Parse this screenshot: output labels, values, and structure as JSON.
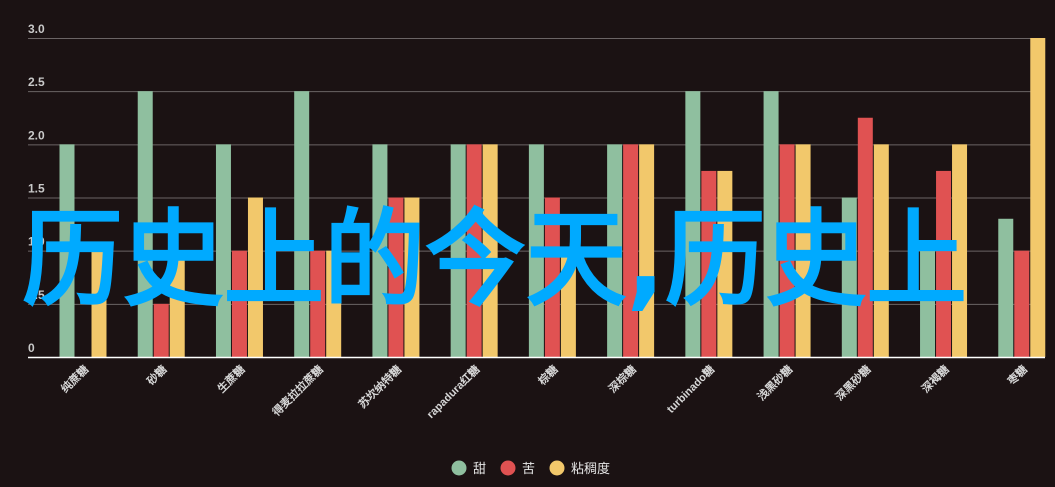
{
  "chart_data": {
    "type": "bar",
    "categories": [
      "纯蔗糖",
      "砂糖",
      "生蔗糖",
      "得麦拉拉蔗糖",
      "苏坎纳特糖",
      "rapadura红糖",
      "棕糖",
      "深棕糖",
      "turbinado糖",
      "浅黑砂糖",
      "深黑砂糖",
      "深褐糖",
      "枣糖"
    ],
    "series": [
      {
        "name": "甜",
        "color": "#8fbf9f",
        "values": [
          2.0,
          2.5,
          2.0,
          2.5,
          2.0,
          2.0,
          2.0,
          2.0,
          2.5,
          2.5,
          1.5,
          1.1,
          1.3
        ]
      },
      {
        "name": "苦",
        "color": "#e05252",
        "values": [
          0,
          0.5,
          1.0,
          1.0,
          1.5,
          2.0,
          1.5,
          2.0,
          1.75,
          2.0,
          2.25,
          1.75,
          1.0
        ]
      },
      {
        "name": "粘稠度",
        "color": "#f2c86b",
        "values": [
          1.0,
          1.0,
          1.5,
          1.0,
          1.5,
          2.0,
          1.0,
          2.0,
          1.75,
          2.0,
          2.0,
          2.0,
          3.0
        ]
      }
    ],
    "y_ticks": [
      "0",
      "0.5",
      "1.0",
      "1.5",
      "2.0",
      "2.5",
      "3.0"
    ],
    "ylim": [
      0,
      3.0
    ],
    "grid": true,
    "legend_position": "bottom-center",
    "overlay_text": "历史上的今天,历史上"
  }
}
